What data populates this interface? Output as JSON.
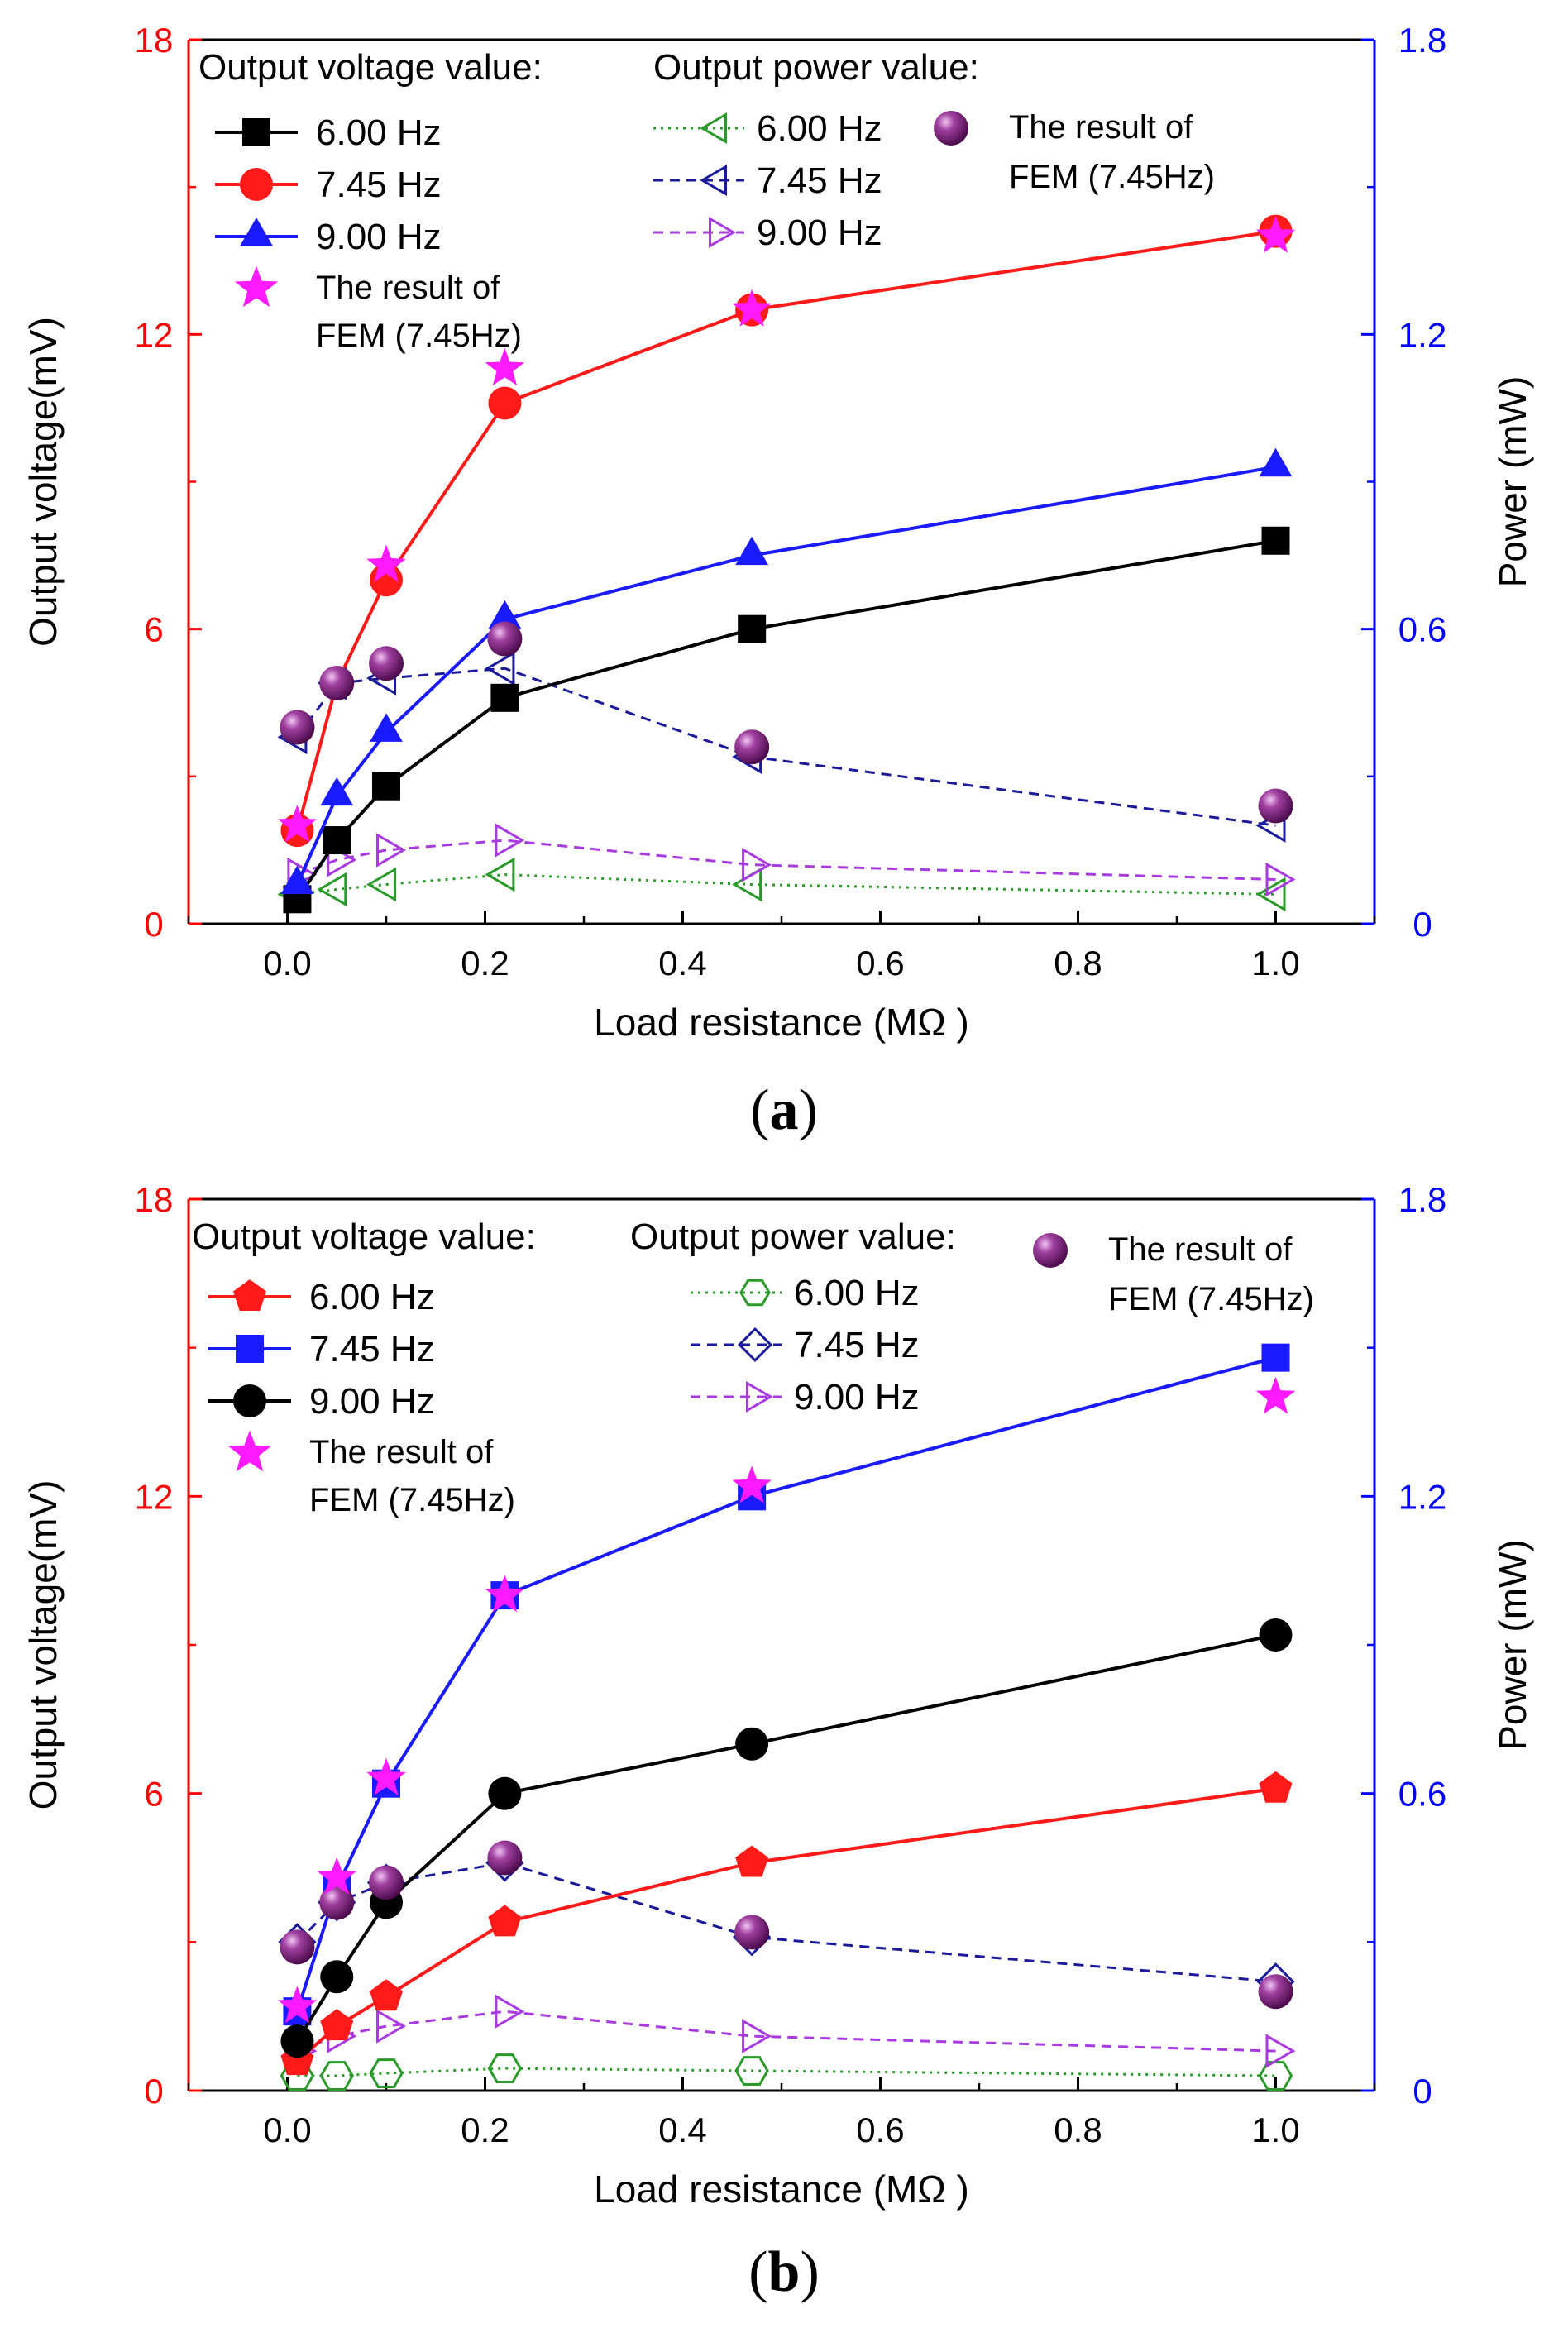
{
  "chart_data": [
    {
      "type": "line",
      "caption": "a",
      "xlabel": "Load resistance (MΩ )",
      "ylabel_left": "Output voltage(mV)",
      "ylabel_right": "Power (mW)",
      "xlim": [
        -0.1,
        1.1
      ],
      "ylim_left": [
        0,
        18
      ],
      "ylim_right": [
        0,
        1.8
      ],
      "x_ticks": [
        "0.0",
        "0.2",
        "0.4",
        "0.6",
        "0.8",
        "1.0"
      ],
      "y_left_ticks": [
        "0",
        "6",
        "12",
        "18"
      ],
      "y_right_ticks": [
        "0",
        "0.6",
        "1.2",
        "1.8"
      ],
      "legend_voltage_title": "Output voltage value:",
      "legend_power_title": "Output power value:",
      "voltage_series": [
        {
          "name": "6.00 Hz",
          "color": "#000000",
          "marker": "square",
          "x": [
            0.01,
            0.05,
            0.1,
            0.22,
            0.47,
            1.0
          ],
          "values": [
            0.5,
            1.7,
            2.8,
            4.6,
            6.0,
            7.8
          ]
        },
        {
          "name": "7.45 Hz",
          "color": "#ff1a1a",
          "marker": "circle",
          "x": [
            0.01,
            0.05,
            0.1,
            0.22,
            0.47,
            1.0
          ],
          "values": [
            1.9,
            4.9,
            7.0,
            10.6,
            12.5,
            14.1
          ]
        },
        {
          "name": "9.00 Hz",
          "color": "#1a1aff",
          "marker": "triangle-up",
          "x": [
            0.01,
            0.05,
            0.1,
            0.22,
            0.47,
            1.0
          ],
          "values": [
            0.8,
            2.6,
            3.9,
            6.2,
            7.5,
            9.3
          ]
        }
      ],
      "voltage_fem": {
        "label1": "The result of",
        "label2": "FEM (7.45Hz)",
        "color": "#ff1aff",
        "marker": "star",
        "x": [
          0.01,
          0.1,
          0.22,
          0.47,
          1.0
        ],
        "values": [
          2.0,
          7.3,
          11.3,
          12.5,
          14.0
        ]
      },
      "power_series": [
        {
          "name": "6.00 Hz",
          "color": "#2a9a2a",
          "dash": "3,6",
          "marker": "triangle-left",
          "x": [
            0.01,
            0.05,
            0.1,
            0.22,
            0.47,
            1.0
          ],
          "values": [
            0.06,
            0.07,
            0.08,
            0.1,
            0.08,
            0.06
          ]
        },
        {
          "name": "7.45 Hz",
          "color": "#1a1a9a",
          "dash": "12,8",
          "marker": "triangle-left",
          "x": [
            0.01,
            0.05,
            0.1,
            0.22,
            0.47,
            1.0
          ],
          "values": [
            0.38,
            0.49,
            0.5,
            0.52,
            0.34,
            0.2
          ]
        },
        {
          "name": "9.00 Hz",
          "color": "#a83ae0",
          "dash": "12,8",
          "marker": "triangle-right",
          "x": [
            0.01,
            0.05,
            0.1,
            0.22,
            0.47,
            1.0
          ],
          "values": [
            0.1,
            0.13,
            0.15,
            0.17,
            0.12,
            0.09
          ]
        }
      ],
      "power_fem": {
        "label1": "The result of",
        "label2": "FEM (7.45Hz)",
        "color": "#7a1a7a",
        "marker": "sphere",
        "x": [
          0.01,
          0.05,
          0.1,
          0.22,
          0.47,
          1.0
        ],
        "values": [
          0.4,
          0.49,
          0.53,
          0.58,
          0.36,
          0.24
        ]
      }
    },
    {
      "type": "line",
      "caption": "b",
      "xlabel": "Load resistance (MΩ )",
      "ylabel_left": "Output voltage(mV)",
      "ylabel_right": "Power (mW)",
      "xlim": [
        -0.1,
        1.1
      ],
      "ylim_left": [
        0,
        18
      ],
      "ylim_right": [
        0,
        1.8
      ],
      "x_ticks": [
        "0.0",
        "0.2",
        "0.4",
        "0.6",
        "0.8",
        "1.0"
      ],
      "y_left_ticks": [
        "0",
        "6",
        "12",
        "18"
      ],
      "y_right_ticks": [
        "0",
        "0.6",
        "1.2",
        "1.8"
      ],
      "legend_voltage_title": "Output voltage value:",
      "legend_power_title": "Output power value:",
      "voltage_series": [
        {
          "name": "6.00 Hz",
          "color": "#ff1a1a",
          "marker": "pentagon",
          "x": [
            0.01,
            0.05,
            0.1,
            0.22,
            0.47,
            1.0
          ],
          "values": [
            0.6,
            1.3,
            1.9,
            3.4,
            4.6,
            6.1
          ]
        },
        {
          "name": "7.45 Hz",
          "color": "#1a1aff",
          "marker": "square",
          "x": [
            0.01,
            0.05,
            0.1,
            0.22,
            0.47,
            1.0
          ],
          "values": [
            1.6,
            4.1,
            6.2,
            10.0,
            12.0,
            14.8
          ]
        },
        {
          "name": "9.00 Hz",
          "color": "#000000",
          "marker": "circle",
          "x": [
            0.01,
            0.05,
            0.1,
            0.22,
            0.47,
            1.0
          ],
          "values": [
            1.0,
            2.3,
            3.8,
            6.0,
            7.0,
            9.2
          ]
        }
      ],
      "voltage_fem": {
        "label1": "The result of",
        "label2": "FEM (7.45Hz)",
        "color": "#ff1aff",
        "marker": "star",
        "x": [
          0.01,
          0.05,
          0.1,
          0.22,
          0.47,
          1.0
        ],
        "values": [
          1.7,
          4.3,
          6.3,
          10.0,
          12.2,
          14.0
        ]
      },
      "power_series": [
        {
          "name": "6.00 Hz",
          "color": "#2a9a2a",
          "dash": "3,6",
          "marker": "hexagon",
          "x": [
            0.01,
            0.05,
            0.1,
            0.22,
            0.47,
            1.0
          ],
          "values": [
            0.03,
            0.03,
            0.035,
            0.045,
            0.04,
            0.03
          ]
        },
        {
          "name": "7.45 Hz",
          "color": "#1a1a9a",
          "dash": "12,8",
          "marker": "diamond",
          "x": [
            0.01,
            0.05,
            0.1,
            0.22,
            0.47,
            1.0
          ],
          "values": [
            0.3,
            0.38,
            0.42,
            0.46,
            0.31,
            0.22
          ]
        },
        {
          "name": "9.00 Hz",
          "color": "#a83ae0",
          "dash": "12,8",
          "marker": "triangle-right",
          "x": [
            0.01,
            0.05,
            0.1,
            0.22,
            0.47,
            1.0
          ],
          "values": [
            0.08,
            0.11,
            0.13,
            0.16,
            0.11,
            0.08
          ]
        }
      ],
      "power_fem": {
        "label1": "The result of",
        "label2": "FEM (7.45Hz)",
        "color": "#7a1a7a",
        "marker": "sphere",
        "x": [
          0.01,
          0.05,
          0.1,
          0.22,
          0.47,
          1.0
        ],
        "values": [
          0.29,
          0.38,
          0.42,
          0.47,
          0.32,
          0.2
        ]
      }
    }
  ]
}
